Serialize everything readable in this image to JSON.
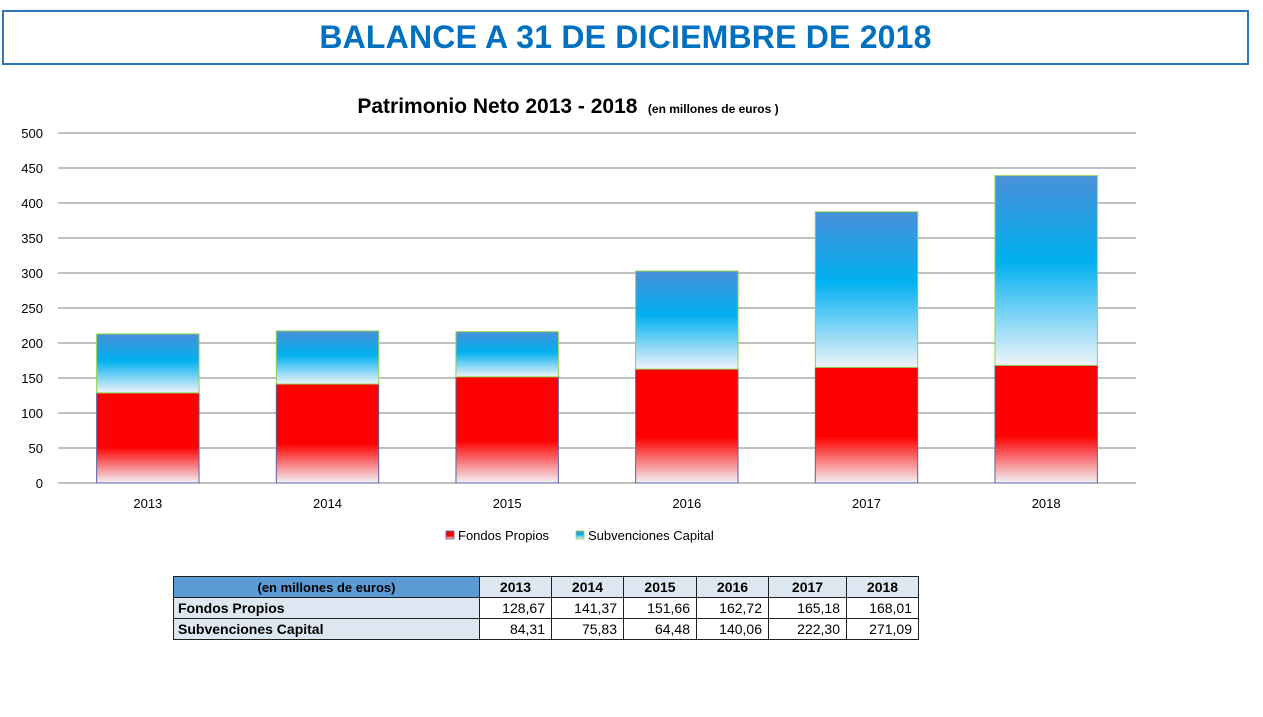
{
  "banner": {
    "title": "BALANCE A 31 DE DICIEMBRE DE 2018"
  },
  "chart_data": {
    "type": "bar",
    "stacked": true,
    "title": "Patrimonio Neto 2013 - 2018",
    "subtitle": "(en millones de euros )",
    "categories": [
      "2013",
      "2014",
      "2015",
      "2016",
      "2017",
      "2018"
    ],
    "series": [
      {
        "name": "Fondos Propios",
        "values": [
          128.67,
          141.37,
          151.66,
          162.72,
          165.18,
          168.01
        ],
        "color": "#ff0000"
      },
      {
        "name": "Subvenciones Capital",
        "values": [
          84.31,
          75.83,
          64.48,
          140.06,
          222.3,
          271.09
        ],
        "color": "#00b0f0"
      }
    ],
    "ylim": [
      0,
      500
    ],
    "yticks": [
      "0",
      "50",
      "100",
      "150",
      "200",
      "250",
      "300",
      "350",
      "400",
      "450",
      "500"
    ],
    "grid": true,
    "legend": "bottom"
  },
  "table": {
    "unit_label": "(en millones de euros)",
    "years": [
      "2013",
      "2014",
      "2015",
      "2016",
      "2017",
      "2018"
    ],
    "rows": [
      {
        "label": "Fondos Propios",
        "values": [
          "128,67",
          "141,37",
          "151,66",
          "162,72",
          "165,18",
          "168,01"
        ]
      },
      {
        "label": "Subvenciones Capital",
        "values": [
          "84,31",
          "75,83",
          "64,48",
          "140,06",
          "222,30",
          "271,09"
        ]
      }
    ]
  },
  "colors": {
    "title_blue": "#0070c0",
    "banner_border": "#2e75b6",
    "grid": "#808080"
  }
}
